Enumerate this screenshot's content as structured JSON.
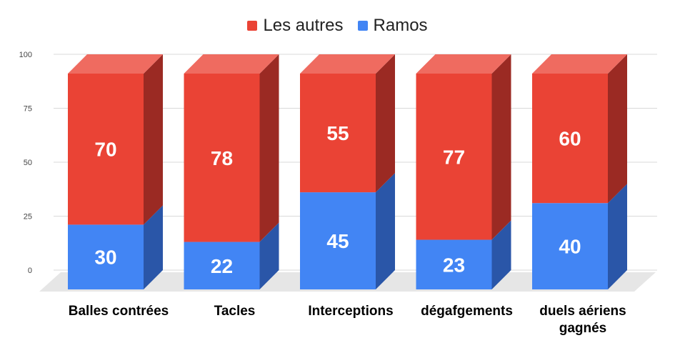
{
  "chart_data": {
    "type": "bar",
    "stacked": true,
    "three_d": true,
    "categories": [
      "Balles contrées",
      "Tacles",
      "Interceptions",
      "dégafgements",
      "duels aériens gagnés"
    ],
    "series": [
      {
        "name": "Ramos",
        "values": [
          30,
          22,
          45,
          23,
          40
        ],
        "color": "#4285f4"
      },
      {
        "name": "Les autres",
        "values": [
          70,
          78,
          55,
          77,
          60
        ],
        "color": "#ea4335"
      }
    ],
    "ylim": [
      0,
      100
    ],
    "y_ticks": [
      "0",
      "25",
      "50",
      "75",
      "100"
    ],
    "grid": true,
    "legend_position": "top"
  }
}
